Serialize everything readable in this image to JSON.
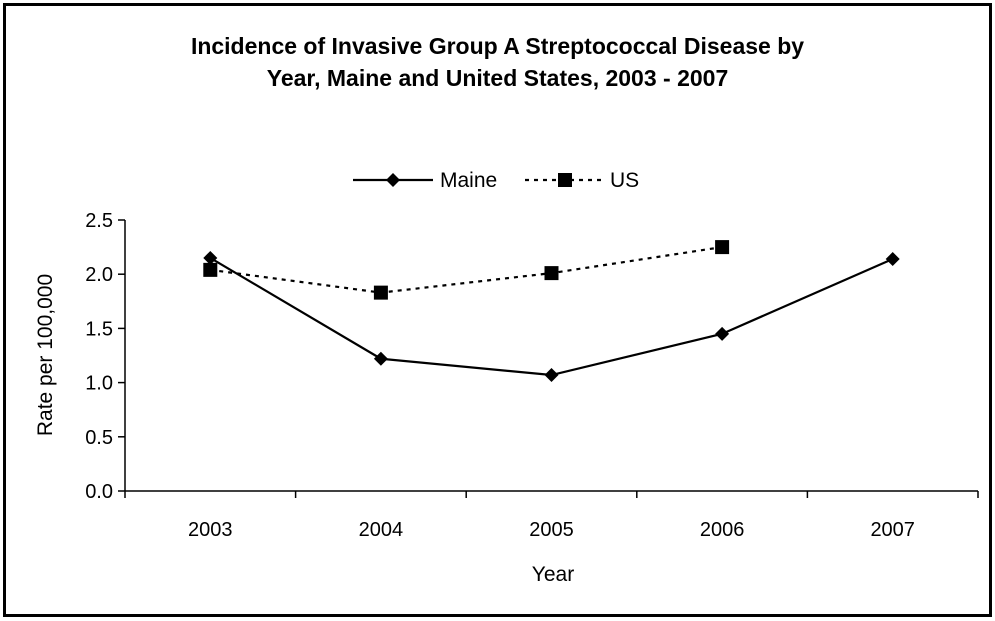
{
  "chart_data": {
    "type": "line",
    "title_line1": "Incidence of Invasive Group A Streptococcal Disease by",
    "title_line2": "Year, Maine and United States, 2003 - 2007",
    "xlabel": "Year",
    "ylabel": "Rate per 100,000",
    "categories": [
      "2003",
      "2004",
      "2005",
      "2006",
      "2007"
    ],
    "ylim": [
      0,
      2.5
    ],
    "yticks": [
      "0.0",
      "0.5",
      "1.0",
      "1.5",
      "2.0",
      "2.5"
    ],
    "grid": false,
    "legend_position": "top-center",
    "series": [
      {
        "name": "Maine",
        "values": [
          2.15,
          1.22,
          1.07,
          1.45,
          2.14
        ],
        "line": "solid",
        "marker": "diamond",
        "color": "#000000"
      },
      {
        "name": "US",
        "values": [
          2.04,
          1.83,
          2.01,
          2.25,
          null
        ],
        "line": "dotted",
        "marker": "square",
        "color": "#000000"
      }
    ]
  }
}
